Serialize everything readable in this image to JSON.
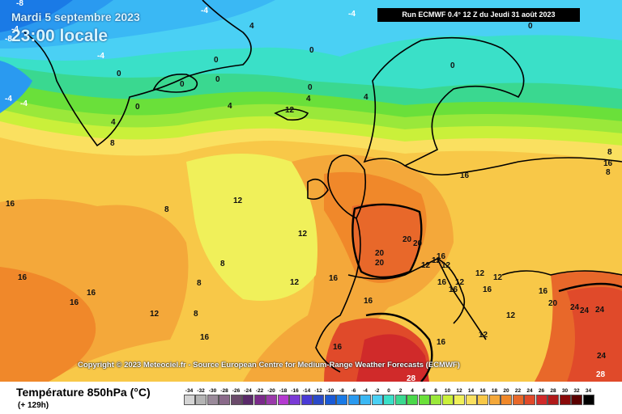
{
  "header": {
    "date": "Mardi 5 septembre 2023",
    "time": "23:00 locale",
    "run": "Run ECMWF 0.4° 12 Z du Jeudi 31 août 2023"
  },
  "copyright": "Copyright © 2023 Meteociel.fr - Source European Centre for Medium-Range Weather Forecasts (ECMWF)",
  "legend": {
    "title": "Température 850hPa (°C)",
    "subtitle": "(+ 129h)",
    "scale": [
      {
        "v": "-34",
        "c": "#d4d4d4"
      },
      {
        "v": "-32",
        "c": "#b4b4b4"
      },
      {
        "v": "-30",
        "c": "#9a8a9a"
      },
      {
        "v": "-28",
        "c": "#8a6a8a"
      },
      {
        "v": "-26",
        "c": "#6a4a6a"
      },
      {
        "v": "-24",
        "c": "#5a2a6a"
      },
      {
        "v": "-22",
        "c": "#7a2a8a"
      },
      {
        "v": "-20",
        "c": "#9a3aaa"
      },
      {
        "v": "-18",
        "c": "#b43ad0"
      },
      {
        "v": "-16",
        "c": "#7a3ad6"
      },
      {
        "v": "-14",
        "c": "#4a3ad6"
      },
      {
        "v": "-12",
        "c": "#2a4ac8"
      },
      {
        "v": "-10",
        "c": "#1a5ad6"
      },
      {
        "v": "-8",
        "c": "#1a7ae6"
      },
      {
        "v": "-6",
        "c": "#2a9af0"
      },
      {
        "v": "-4",
        "c": "#3ab8f4"
      },
      {
        "v": "-2",
        "c": "#4ad0f4"
      },
      {
        "v": "0",
        "c": "#3ae0c8"
      },
      {
        "v": "2",
        "c": "#3ad890"
      },
      {
        "v": "4",
        "c": "#4ad84a"
      },
      {
        "v": "6",
        "c": "#6ae03a"
      },
      {
        "v": "8",
        "c": "#9ae83a"
      },
      {
        "v": "10",
        "c": "#caf03a"
      },
      {
        "v": "12",
        "c": "#f0f05a"
      },
      {
        "v": "14",
        "c": "#fae060"
      },
      {
        "v": "16",
        "c": "#f8c848"
      },
      {
        "v": "18",
        "c": "#f4a83a"
      },
      {
        "v": "20",
        "c": "#f0882a"
      },
      {
        "v": "22",
        "c": "#e8682a"
      },
      {
        "v": "24",
        "c": "#e04a2a"
      },
      {
        "v": "26",
        "c": "#d02a2a"
      },
      {
        "v": "28",
        "c": "#b01a1a"
      },
      {
        "v": "30",
        "c": "#8a0a0a"
      },
      {
        "v": "32",
        "c": "#5a0000"
      },
      {
        "v": "34",
        "c": "#000000"
      }
    ]
  },
  "contour_labels": [
    "-8",
    "-4",
    "-8",
    "-4",
    "-4",
    "-4",
    "-4",
    "0",
    "4",
    "0",
    "0",
    "0",
    "0",
    "0",
    "0",
    "0",
    "-4",
    "0",
    "4",
    "8",
    "4",
    "4",
    "12",
    "4",
    "16",
    "12",
    "12",
    "8",
    "8",
    "8",
    "12",
    "16",
    "16",
    "16",
    "16",
    "12",
    "8",
    "16",
    "16",
    "16",
    "16",
    "16",
    "20",
    "20",
    "20",
    "20",
    "16",
    "12",
    "12",
    "12",
    "12",
    "16",
    "16",
    "12",
    "16",
    "12",
    "12",
    "16",
    "8",
    "8",
    "20",
    "24",
    "24",
    "24",
    "12",
    "16",
    "24",
    "28",
    "28"
  ]
}
